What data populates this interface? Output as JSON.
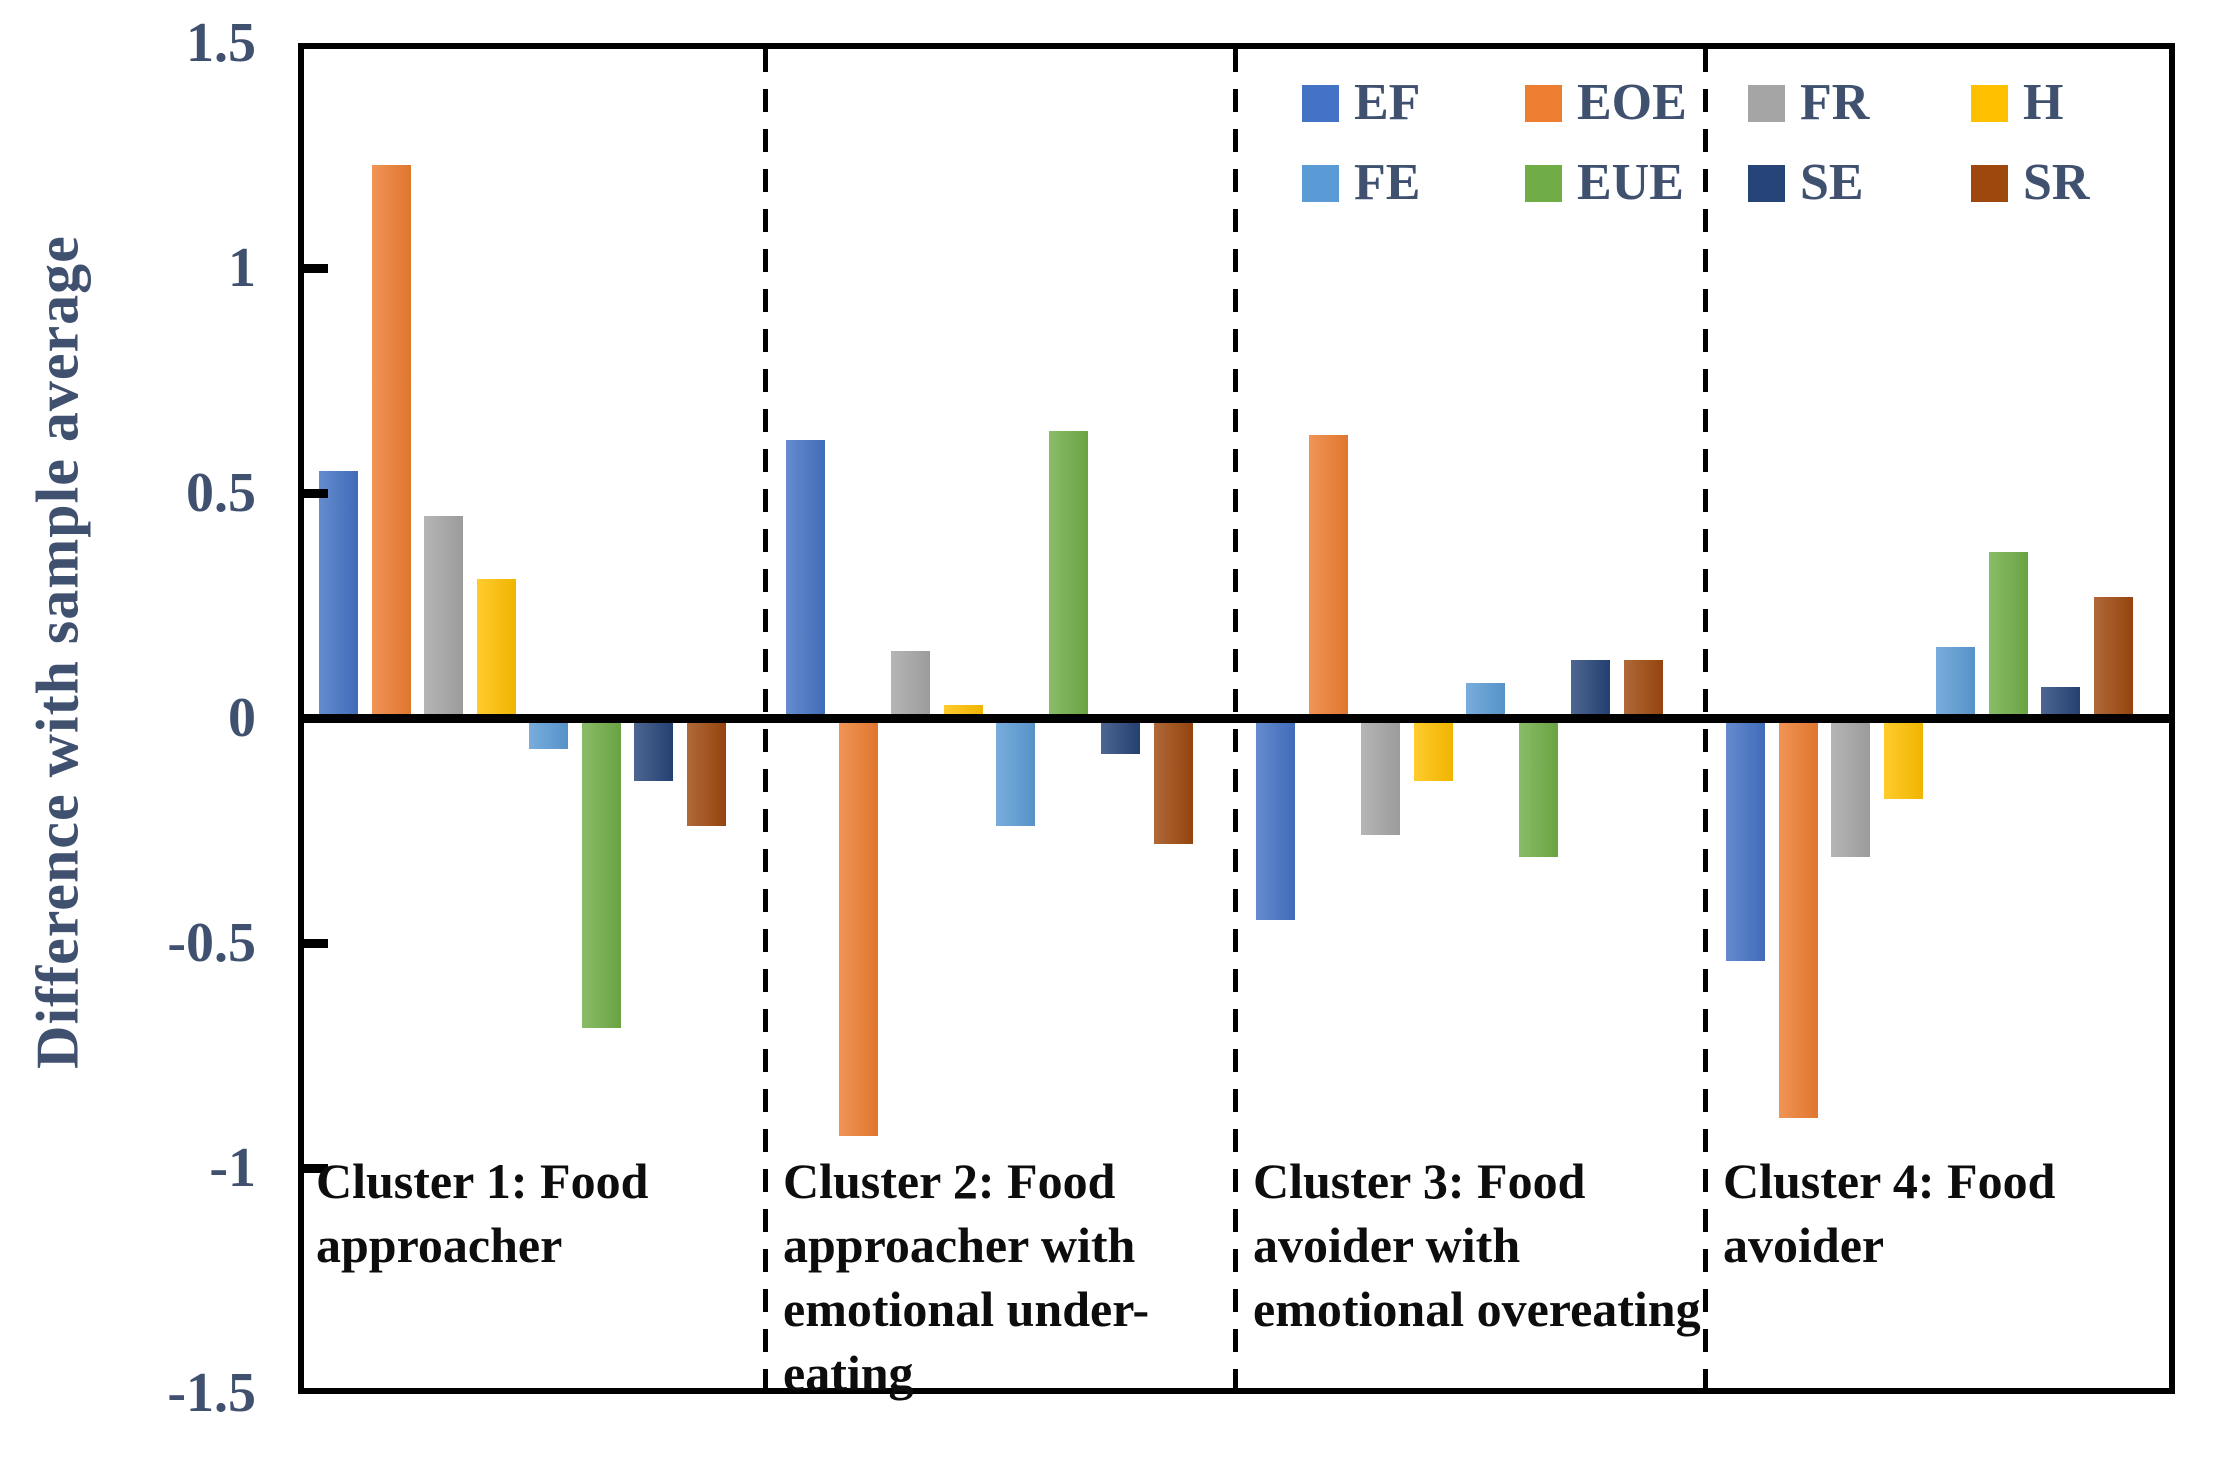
{
  "chart_data": {
    "type": "bar",
    "title": "",
    "ylabel": "Difference with sample average",
    "xlabel": "",
    "ylim": [
      -1.5,
      1.5
    ],
    "grid": false,
    "legend_position": "top-right-inside",
    "legend_rows": [
      [
        "EF",
        "EOE",
        "FR",
        "H"
      ],
      [
        "FE",
        "EUE",
        "SE",
        "SR"
      ]
    ],
    "yticks": [
      {
        "value": 1.5,
        "label": "1.5"
      },
      {
        "value": 1,
        "label": "1"
      },
      {
        "value": 0.5,
        "label": "0.5"
      },
      {
        "value": 0,
        "label": "0"
      },
      {
        "value": -0.5,
        "label": "-0.5"
      },
      {
        "value": -1,
        "label": "-1"
      },
      {
        "value": -1.5,
        "label": "-1.5"
      }
    ],
    "categories": [
      "Cluster 1: Food\napproacher",
      "Cluster 2: Food\napproacher with\nemotional under-\neating",
      "Cluster 3: Food\navoider with\nemotional overeating",
      "Cluster 4:  Food\navoider"
    ],
    "series": [
      {
        "name": "EF",
        "color": "#4472C4",
        "values": [
          0.54,
          0.61,
          -0.44,
          -0.53
        ]
      },
      {
        "name": "EOE",
        "color": "#ED7D31",
        "values": [
          1.22,
          -0.92,
          0.62,
          -0.88
        ]
      },
      {
        "name": "FR",
        "color": "#A5A5A5",
        "values": [
          0.44,
          0.14,
          -0.25,
          -0.3
        ]
      },
      {
        "name": "H",
        "color": "#FFC000",
        "values": [
          0.3,
          0.02,
          -0.13,
          -0.17
        ]
      },
      {
        "name": "FE",
        "color": "#5B9BD5",
        "values": [
          -0.06,
          -0.23,
          0.07,
          0.15
        ]
      },
      {
        "name": "EUE",
        "color": "#70AD47",
        "values": [
          -0.68,
          0.63,
          -0.3,
          0.36
        ]
      },
      {
        "name": "SE",
        "color": "#264478",
        "values": [
          -0.13,
          -0.07,
          0.12,
          0.06
        ]
      },
      {
        "name": "SR",
        "color": "#9E480E",
        "values": [
          -0.23,
          -0.27,
          0.12,
          0.26
        ]
      }
    ]
  }
}
